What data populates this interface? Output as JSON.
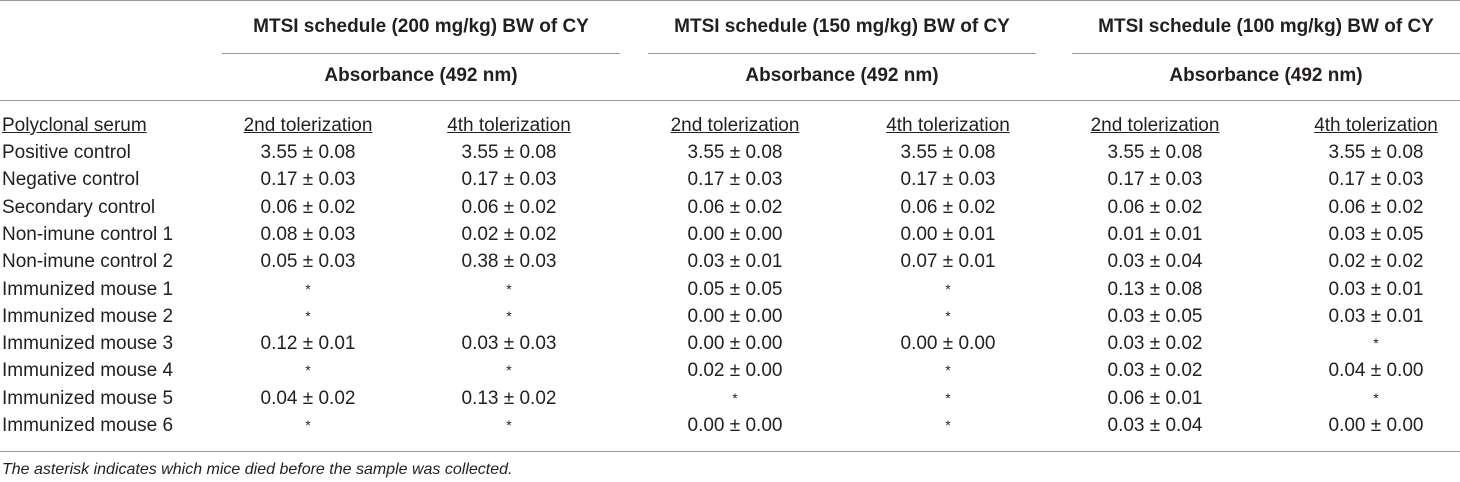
{
  "groups": [
    {
      "title": "MTSI schedule (200 mg/kg) BW of CY",
      "subtitle": "Absorbance (492 nm)"
    },
    {
      "title": "MTSI schedule (150 mg/kg) BW of CY",
      "subtitle": "Absorbance (492 nm)"
    },
    {
      "title": "MTSI schedule (100 mg/kg) BW of CY",
      "subtitle": "Absorbance (492 nm)"
    }
  ],
  "columns": [
    "Polyclonal serum",
    "2nd tolerization",
    "4th tolerization",
    "2nd tolerization",
    "4th tolerization",
    "2nd tolerization",
    "4th tolerization"
  ],
  "rows": [
    [
      "Positive control",
      "3.55 ± 0.08",
      "3.55 ± 0.08",
      "3.55 ± 0.08",
      "3.55 ± 0.08",
      "3.55 ± 0.08",
      "3.55 ± 0.08"
    ],
    [
      "Negative control",
      "0.17 ± 0.03",
      "0.17 ± 0.03",
      "0.17 ± 0.03",
      "0.17 ± 0.03",
      "0.17 ± 0.03",
      "0.17 ± 0.03"
    ],
    [
      "Secondary control",
      "0.06 ± 0.02",
      "0.06 ± 0.02",
      "0.06 ± 0.02",
      "0.06 ± 0.02",
      "0.06 ± 0.02",
      "0.06 ± 0.02"
    ],
    [
      "Non-imune control 1",
      "0.08 ± 0.03",
      "0.02 ± 0.02",
      "0.00 ± 0.00",
      "0.00 ± 0.01",
      "0.01 ± 0.01",
      "0.03 ± 0.05"
    ],
    [
      "Non-imune control 2",
      "0.05 ± 0.03",
      "0.38 ± 0.03",
      "0.03 ± 0.01",
      "0.07 ± 0.01",
      "0.03 ± 0.04",
      "0.02 ± 0.02"
    ],
    [
      "Immunized mouse 1",
      "*",
      "*",
      "0.05 ± 0.05",
      "*",
      "0.13 ± 0.08",
      "0.03 ± 0.01"
    ],
    [
      "Immunized mouse 2",
      "*",
      "*",
      "0.00 ± 0.00",
      "*",
      "0.03 ± 0.05",
      "0.03 ± 0.01"
    ],
    [
      "Immunized mouse 3",
      "0.12 ± 0.01",
      "0.03 ± 0.03",
      "0.00 ± 0.00",
      "0.00 ± 0.00",
      "0.03 ± 0.02",
      "*"
    ],
    [
      "Immunized mouse 4",
      "*",
      "*",
      "0.02 ± 0.00",
      "*",
      "0.03 ± 0.02",
      "0.04 ± 0.00"
    ],
    [
      "Immunized mouse 5",
      "0.04 ± 0.02",
      "0.13 ± 0.02",
      "*",
      "*",
      "0.06 ± 0.01",
      "*"
    ],
    [
      "Immunized mouse 6",
      "*",
      "*",
      "0.00 ± 0.00",
      "*",
      "0.03 ± 0.04",
      "0.00 ± 0.00"
    ]
  ],
  "footnote": "The asterisk indicates which mice died before the sample was collected."
}
